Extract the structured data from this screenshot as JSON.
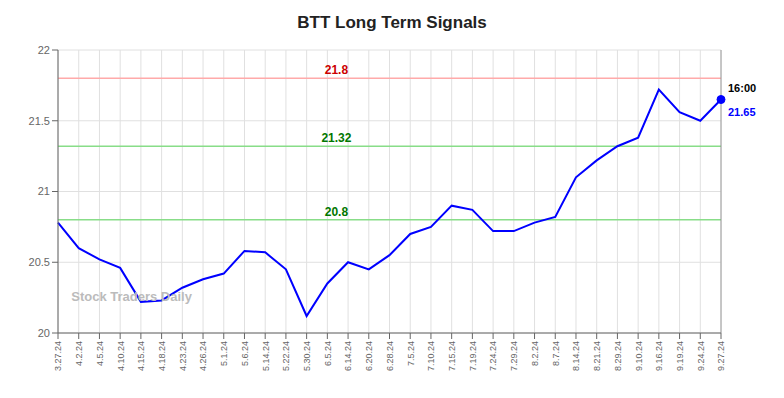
{
  "chart_data": {
    "type": "line",
    "title": "BTT Long Term Signals",
    "categories": [
      "3.27.24",
      "4.2.24",
      "4.5.24",
      "4.10.24",
      "4.15.24",
      "4.18.24",
      "4.23.24",
      "4.26.24",
      "5.1.24",
      "5.6.24",
      "5.14.24",
      "5.22.24",
      "5.30.24",
      "6.5.24",
      "6.14.24",
      "6.20.24",
      "6.28.24",
      "7.5.24",
      "7.10.24",
      "7.15.24",
      "7.19.24",
      "7.24.24",
      "7.29.24",
      "8.2.24",
      "8.7.24",
      "8.14.24",
      "8.21.24",
      "8.29.24",
      "9.10.24",
      "9.16.24",
      "9.19.24",
      "9.24.24",
      "9.27.24"
    ],
    "values": [
      20.78,
      20.6,
      20.52,
      20.46,
      20.22,
      20.23,
      20.32,
      20.38,
      20.42,
      20.58,
      20.57,
      20.45,
      20.12,
      20.35,
      20.5,
      20.45,
      20.55,
      20.7,
      20.75,
      20.9,
      20.87,
      20.72,
      20.72,
      20.78,
      20.82,
      21.1,
      21.22,
      21.32,
      21.38,
      21.72,
      21.56,
      21.5,
      21.65
    ],
    "color": "blue",
    "ylim": [
      20,
      22
    ],
    "yticks": [
      20,
      20.5,
      21,
      21.5,
      22
    ],
    "grid": true,
    "reference_lines": [
      {
        "y": 21.8,
        "color": "#ffaaaa",
        "label_color": "#cc0000"
      },
      {
        "y": 21.32,
        "color": "#88dd88",
        "label_color": "#007700"
      },
      {
        "y": 20.8,
        "color": "#88dd88",
        "label_color": "#007700"
      }
    ],
    "annotations": [
      {
        "text": "16:00",
        "x": "9.27.24",
        "y": 21.65,
        "color": "black"
      },
      {
        "text": "21.65",
        "x": "9.27.24",
        "y": 21.65,
        "color": "blue"
      }
    ],
    "watermark": {
      "text": "Stock Traders Daily",
      "color": "#bbbbbb"
    }
  }
}
